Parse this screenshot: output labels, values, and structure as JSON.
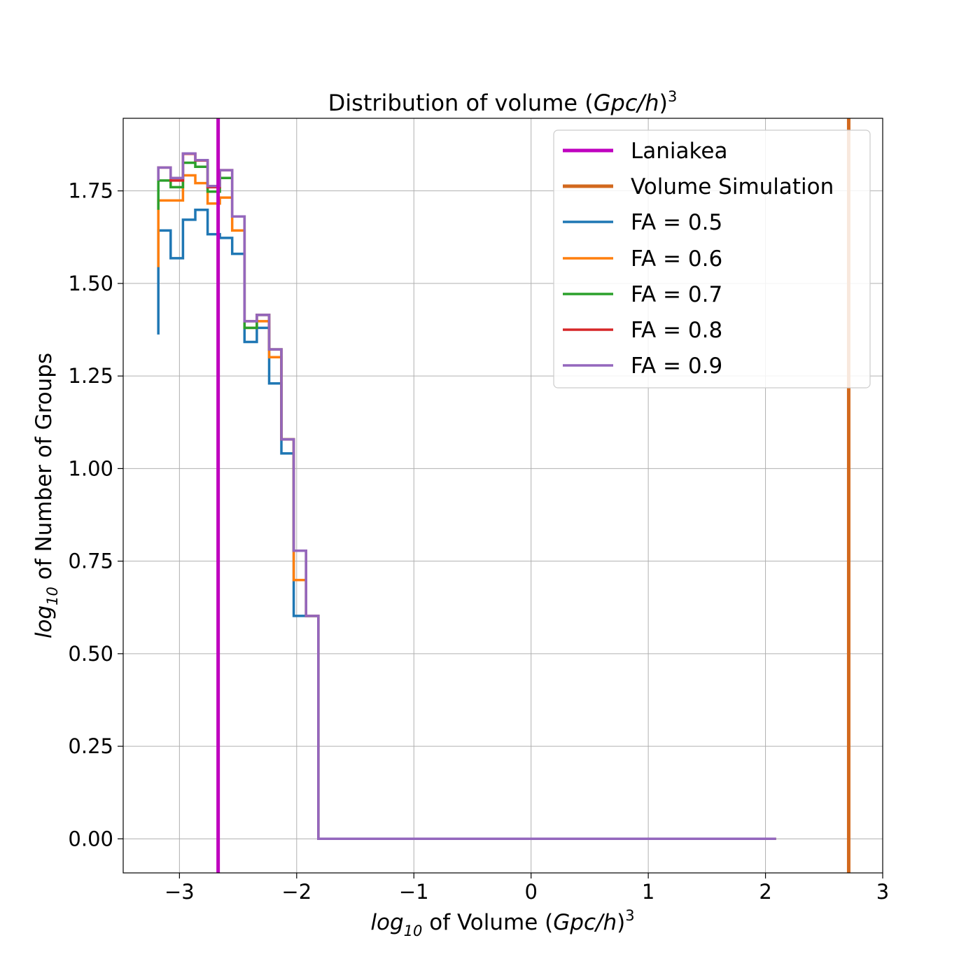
{
  "chart_data": {
    "type": "line",
    "title": {
      "prefix": "Distribution of volume (",
      "italic": "Gpc/h",
      "suffix": ")",
      "sup": "3"
    },
    "xlabel": {
      "log": "log",
      "sub": "10",
      "middle": " of Volume (",
      "italic": "Gpc/h",
      "suffix": ")",
      "sup": "3"
    },
    "ylabel": {
      "log": "log",
      "sub": "10",
      "rest": " of Number of Groups"
    },
    "xlim": [
      -3.48,
      3.0
    ],
    "ylim": [
      -0.092,
      1.946
    ],
    "xticks": [
      -3,
      -2,
      -1,
      0,
      1,
      2,
      3
    ],
    "xtick_labels": [
      "−3",
      "−2",
      "−1",
      "0",
      "1",
      "2",
      "3"
    ],
    "yticks": [
      0.0,
      0.25,
      0.5,
      0.75,
      1.0,
      1.25,
      1.5,
      1.75
    ],
    "ytick_labels": [
      "0.00",
      "0.25",
      "0.50",
      "0.75",
      "1.00",
      "1.25",
      "1.50",
      "1.75"
    ],
    "grid": true,
    "legend_position": "top-right",
    "vlines": [
      {
        "name": "Laniakea",
        "x": -2.67,
        "color": "#bf00bf"
      },
      {
        "name": "Volume Simulation",
        "x": 2.71,
        "color": "#d2691e"
      }
    ],
    "bin_edges": [
      -3.18,
      -3.075,
      -2.97,
      -2.865,
      -2.76,
      -2.655,
      -2.55,
      -2.445,
      -2.34,
      -2.235,
      -2.13,
      -2.025,
      -1.92,
      -1.815,
      2.09
    ],
    "series": [
      {
        "name": "FA = 0.5",
        "color": "#1f77b4",
        "values": [
          1.643,
          1.568,
          1.672,
          1.699,
          1.633,
          1.623,
          1.58,
          1.342,
          1.38,
          1.23,
          1.041,
          0.602,
          0.602,
          0.0
        ],
        "start": 1.362
      },
      {
        "name": "FA = 0.6",
        "color": "#ff7f0e",
        "values": [
          1.724,
          1.724,
          1.792,
          1.771,
          1.716,
          1.732,
          1.643,
          1.38,
          1.398,
          1.301,
          1.079,
          0.699,
          0.602,
          0.0
        ],
        "start": 1.544
      },
      {
        "name": "FA = 0.7",
        "color": "#2ca02c",
        "values": [
          1.778,
          1.76,
          1.826,
          1.815,
          1.748,
          1.785,
          1.681,
          1.38,
          1.415,
          1.322,
          1.079,
          0.778,
          0.602,
          0.0
        ],
        "start": 1.699
      },
      {
        "name": "FA = 0.8",
        "color": "#d62728",
        "values": [
          1.813,
          1.778,
          1.85,
          1.832,
          1.76,
          1.806,
          1.681,
          1.398,
          1.415,
          1.322,
          1.079,
          0.778,
          0.602,
          0.0
        ],
        "start": 1.778
      },
      {
        "name": "FA = 0.9",
        "color": "#9467bd",
        "values": [
          1.813,
          1.785,
          1.851,
          1.833,
          1.763,
          1.806,
          1.681,
          1.398,
          1.415,
          1.322,
          1.079,
          0.778,
          0.602,
          0.0
        ],
        "start": 1.778
      }
    ]
  }
}
